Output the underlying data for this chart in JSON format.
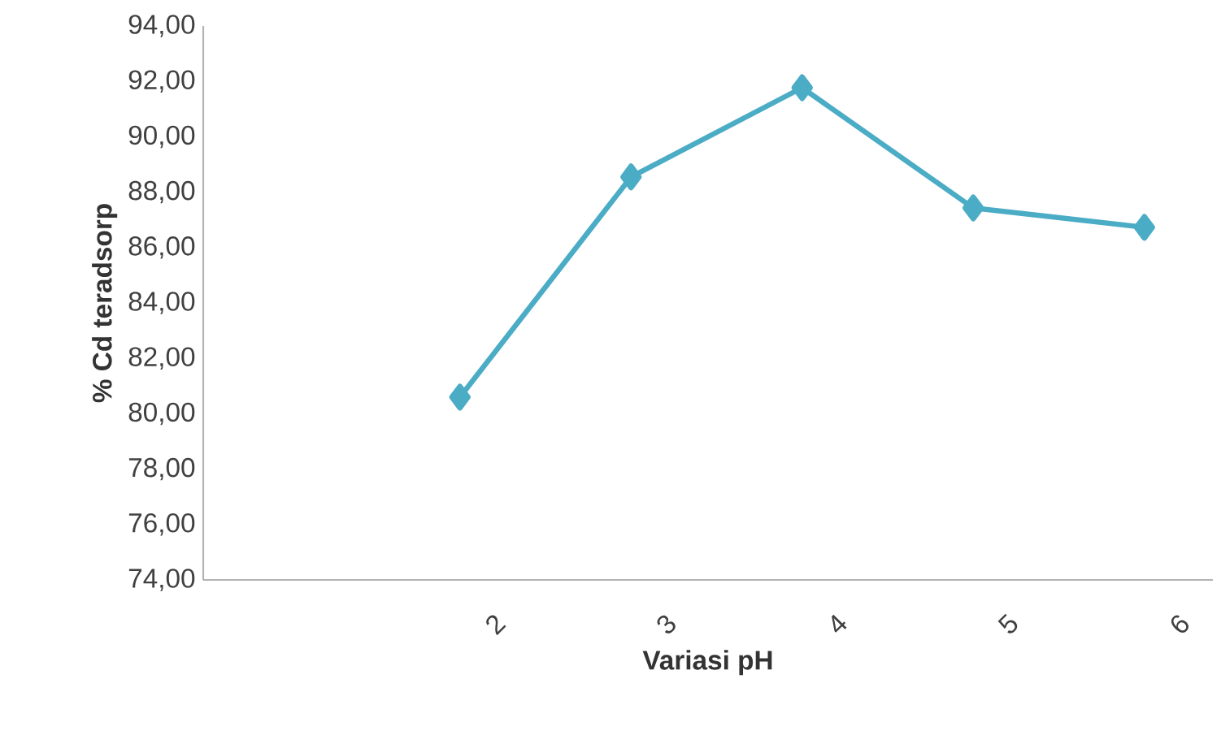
{
  "chart_data": {
    "type": "line",
    "xlabel": "Variasi pH",
    "ylabel": "% Cd teradsorp",
    "categories": [
      null,
      "2",
      "3",
      "4",
      "5",
      "6"
    ],
    "series": [
      {
        "color": "#4bacc6",
        "values": [
          null,
          80.6,
          88.55,
          91.77,
          87.43,
          86.73
        ]
      }
    ],
    "ylim": [
      74,
      94
    ],
    "yticks": [
      {
        "value": 74,
        "label": "74,00"
      },
      {
        "value": 76,
        "label": "76,00"
      },
      {
        "value": 78,
        "label": "78,00"
      },
      {
        "value": 80,
        "label": "80,00"
      },
      {
        "value": 82,
        "label": "82,00"
      },
      {
        "value": 84,
        "label": "84,00"
      },
      {
        "value": 86,
        "label": "86,00"
      },
      {
        "value": 88,
        "label": "88,00"
      },
      {
        "value": 90,
        "label": "90,00"
      },
      {
        "value": 92,
        "label": "92,00"
      },
      {
        "value": 94,
        "label": "94,00"
      }
    ],
    "marker": "diamond",
    "line_style": "solid",
    "grid": false,
    "legend": false
  }
}
